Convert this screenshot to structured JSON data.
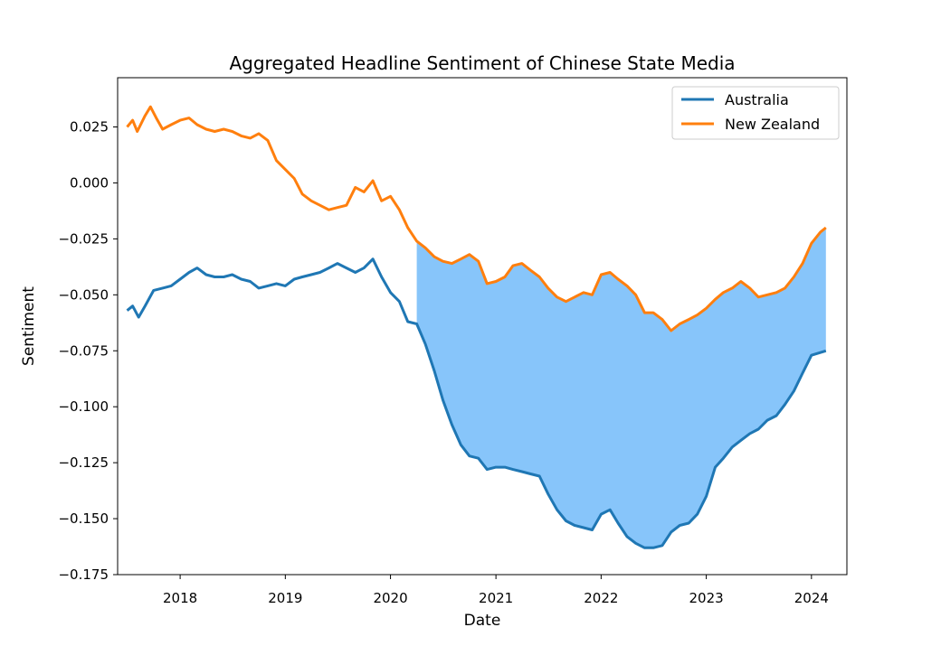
{
  "chart_data": {
    "type": "line",
    "title": "Aggregated Headline Sentiment of Chinese State Media",
    "xlabel": "Date",
    "ylabel": "Sentiment",
    "xlim": [
      "2017-05-29",
      "2024-05-03"
    ],
    "ylim": [
      -0.175,
      0.047
    ],
    "x_ticks": [
      "2018",
      "2019",
      "2020",
      "2021",
      "2022",
      "2023",
      "2024"
    ],
    "y_ticks": [
      "0.025",
      "0.000",
      "−0.025",
      "−0.050",
      "−0.075",
      "−0.100",
      "−0.125",
      "−0.150",
      "−0.175"
    ],
    "grid": false,
    "legend": {
      "position": "top-right"
    },
    "fill_between": {
      "from": "2020-04-01",
      "to": "2024-02-20",
      "color": "#87c5fa"
    },
    "series": [
      {
        "name": "Australia",
        "color": "#1f77b4",
        "points": [
          [
            "2017-07-01",
            -0.057
          ],
          [
            "2017-07-20",
            -0.055
          ],
          [
            "2017-08-10",
            -0.06
          ],
          [
            "2017-09-01",
            -0.055
          ],
          [
            "2017-10-01",
            -0.048
          ],
          [
            "2017-11-01",
            -0.047
          ],
          [
            "2017-12-01",
            -0.046
          ],
          [
            "2018-01-01",
            -0.043
          ],
          [
            "2018-02-01",
            -0.04
          ],
          [
            "2018-03-01",
            -0.038
          ],
          [
            "2018-04-01",
            -0.041
          ],
          [
            "2018-05-01",
            -0.042
          ],
          [
            "2018-06-01",
            -0.042
          ],
          [
            "2018-07-01",
            -0.041
          ],
          [
            "2018-08-01",
            -0.043
          ],
          [
            "2018-09-01",
            -0.044
          ],
          [
            "2018-10-01",
            -0.047
          ],
          [
            "2018-11-01",
            -0.046
          ],
          [
            "2018-12-01",
            -0.045
          ],
          [
            "2019-01-01",
            -0.046
          ],
          [
            "2019-02-01",
            -0.043
          ],
          [
            "2019-03-01",
            -0.042
          ],
          [
            "2019-04-01",
            -0.041
          ],
          [
            "2019-05-01",
            -0.04
          ],
          [
            "2019-06-01",
            -0.038
          ],
          [
            "2019-07-01",
            -0.036
          ],
          [
            "2019-08-01",
            -0.038
          ],
          [
            "2019-09-01",
            -0.04
          ],
          [
            "2019-10-01",
            -0.038
          ],
          [
            "2019-11-01",
            -0.034
          ],
          [
            "2019-12-01",
            -0.042
          ],
          [
            "2020-01-01",
            -0.049
          ],
          [
            "2020-02-01",
            -0.053
          ],
          [
            "2020-03-01",
            -0.062
          ],
          [
            "2020-04-01",
            -0.063
          ],
          [
            "2020-05-01",
            -0.072
          ],
          [
            "2020-06-01",
            -0.084
          ],
          [
            "2020-07-01",
            -0.097
          ],
          [
            "2020-08-01",
            -0.108
          ],
          [
            "2020-09-01",
            -0.117
          ],
          [
            "2020-10-01",
            -0.122
          ],
          [
            "2020-11-01",
            -0.123
          ],
          [
            "2020-12-01",
            -0.128
          ],
          [
            "2021-01-01",
            -0.127
          ],
          [
            "2021-02-01",
            -0.127
          ],
          [
            "2021-03-01",
            -0.128
          ],
          [
            "2021-04-01",
            -0.129
          ],
          [
            "2021-05-01",
            -0.13
          ],
          [
            "2021-06-01",
            -0.131
          ],
          [
            "2021-07-01",
            -0.139
          ],
          [
            "2021-08-01",
            -0.146
          ],
          [
            "2021-09-01",
            -0.151
          ],
          [
            "2021-10-01",
            -0.153
          ],
          [
            "2021-11-01",
            -0.154
          ],
          [
            "2021-12-01",
            -0.155
          ],
          [
            "2022-01-01",
            -0.148
          ],
          [
            "2022-02-01",
            -0.146
          ],
          [
            "2022-03-01",
            -0.152
          ],
          [
            "2022-04-01",
            -0.158
          ],
          [
            "2022-05-01",
            -0.161
          ],
          [
            "2022-06-01",
            -0.163
          ],
          [
            "2022-07-01",
            -0.163
          ],
          [
            "2022-08-01",
            -0.162
          ],
          [
            "2022-09-01",
            -0.156
          ],
          [
            "2022-10-01",
            -0.153
          ],
          [
            "2022-11-01",
            -0.152
          ],
          [
            "2022-12-01",
            -0.148
          ],
          [
            "2023-01-01",
            -0.14
          ],
          [
            "2023-02-01",
            -0.127
          ],
          [
            "2023-03-01",
            -0.123
          ],
          [
            "2023-04-01",
            -0.118
          ],
          [
            "2023-05-01",
            -0.115
          ],
          [
            "2023-06-01",
            -0.112
          ],
          [
            "2023-07-01",
            -0.11
          ],
          [
            "2023-08-01",
            -0.106
          ],
          [
            "2023-09-01",
            -0.104
          ],
          [
            "2023-10-01",
            -0.099
          ],
          [
            "2023-11-01",
            -0.093
          ],
          [
            "2023-12-01",
            -0.085
          ],
          [
            "2024-01-01",
            -0.077
          ],
          [
            "2024-02-20",
            -0.075
          ]
        ]
      },
      {
        "name": "New Zealand",
        "color": "#ff7f0e",
        "points": [
          [
            "2017-07-01",
            0.025
          ],
          [
            "2017-07-20",
            0.028
          ],
          [
            "2017-08-05",
            0.023
          ],
          [
            "2017-09-01",
            0.03
          ],
          [
            "2017-09-20",
            0.034
          ],
          [
            "2017-10-10",
            0.029
          ],
          [
            "2017-11-01",
            0.024
          ],
          [
            "2017-12-01",
            0.026
          ],
          [
            "2018-01-01",
            0.028
          ],
          [
            "2018-02-01",
            0.029
          ],
          [
            "2018-03-01",
            0.026
          ],
          [
            "2018-04-01",
            0.024
          ],
          [
            "2018-05-01",
            0.023
          ],
          [
            "2018-06-01",
            0.024
          ],
          [
            "2018-07-01",
            0.023
          ],
          [
            "2018-08-01",
            0.021
          ],
          [
            "2018-09-01",
            0.02
          ],
          [
            "2018-10-01",
            0.022
          ],
          [
            "2018-11-01",
            0.019
          ],
          [
            "2018-12-01",
            0.01
          ],
          [
            "2019-01-01",
            0.006
          ],
          [
            "2019-02-01",
            0.002
          ],
          [
            "2019-03-01",
            -0.005
          ],
          [
            "2019-04-01",
            -0.008
          ],
          [
            "2019-05-01",
            -0.01
          ],
          [
            "2019-06-01",
            -0.012
          ],
          [
            "2019-07-01",
            -0.011
          ],
          [
            "2019-08-01",
            -0.01
          ],
          [
            "2019-09-01",
            -0.002
          ],
          [
            "2019-10-01",
            -0.004
          ],
          [
            "2019-11-01",
            0.001
          ],
          [
            "2019-12-01",
            -0.008
          ],
          [
            "2020-01-01",
            -0.006
          ],
          [
            "2020-02-01",
            -0.012
          ],
          [
            "2020-03-01",
            -0.02
          ],
          [
            "2020-04-01",
            -0.026
          ],
          [
            "2020-05-01",
            -0.029
          ],
          [
            "2020-06-01",
            -0.033
          ],
          [
            "2020-07-01",
            -0.035
          ],
          [
            "2020-08-01",
            -0.036
          ],
          [
            "2020-09-01",
            -0.034
          ],
          [
            "2020-10-01",
            -0.032
          ],
          [
            "2020-11-01",
            -0.035
          ],
          [
            "2020-12-01",
            -0.045
          ],
          [
            "2021-01-01",
            -0.044
          ],
          [
            "2021-02-01",
            -0.042
          ],
          [
            "2021-03-01",
            -0.037
          ],
          [
            "2021-04-01",
            -0.036
          ],
          [
            "2021-05-01",
            -0.039
          ],
          [
            "2021-06-01",
            -0.042
          ],
          [
            "2021-07-01",
            -0.047
          ],
          [
            "2021-08-01",
            -0.051
          ],
          [
            "2021-09-01",
            -0.053
          ],
          [
            "2021-10-01",
            -0.051
          ],
          [
            "2021-11-01",
            -0.049
          ],
          [
            "2021-12-01",
            -0.05
          ],
          [
            "2022-01-01",
            -0.041
          ],
          [
            "2022-02-01",
            -0.04
          ],
          [
            "2022-03-01",
            -0.043
          ],
          [
            "2022-04-01",
            -0.046
          ],
          [
            "2022-05-01",
            -0.05
          ],
          [
            "2022-06-01",
            -0.058
          ],
          [
            "2022-07-01",
            -0.058
          ],
          [
            "2022-08-01",
            -0.061
          ],
          [
            "2022-09-01",
            -0.066
          ],
          [
            "2022-10-01",
            -0.063
          ],
          [
            "2022-11-01",
            -0.061
          ],
          [
            "2022-12-01",
            -0.059
          ],
          [
            "2023-01-01",
            -0.056
          ],
          [
            "2023-02-01",
            -0.052
          ],
          [
            "2023-03-01",
            -0.049
          ],
          [
            "2023-04-01",
            -0.047
          ],
          [
            "2023-05-01",
            -0.044
          ],
          [
            "2023-06-01",
            -0.047
          ],
          [
            "2023-07-01",
            -0.051
          ],
          [
            "2023-08-01",
            -0.05
          ],
          [
            "2023-09-01",
            -0.049
          ],
          [
            "2023-10-01",
            -0.047
          ],
          [
            "2023-11-01",
            -0.042
          ],
          [
            "2023-12-01",
            -0.036
          ],
          [
            "2024-01-01",
            -0.027
          ],
          [
            "2024-02-01",
            -0.022
          ],
          [
            "2024-02-20",
            -0.02
          ]
        ]
      }
    ]
  }
}
